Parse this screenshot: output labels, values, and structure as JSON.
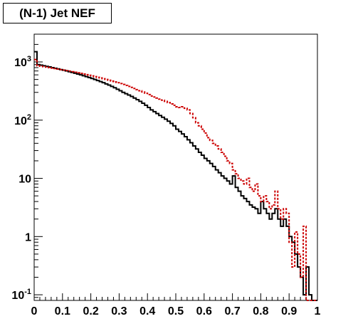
{
  "chart_data": {
    "type": "histogram",
    "title": "(N-1) Jet NEF",
    "xlabel": "",
    "ylabel": "",
    "xlim": [
      0,
      1
    ],
    "ylim": [
      0.08,
      3000
    ],
    "yscale": "log",
    "x_ticks": [
      "0",
      "0.1",
      "0.2",
      "0.3",
      "0.4",
      "0.5",
      "0.6",
      "0.7",
      "0.8",
      "0.9",
      "1"
    ],
    "y_ticks": [
      {
        "value": 0.1,
        "base": "10",
        "exp": "-1"
      },
      {
        "value": 1,
        "label": "1"
      },
      {
        "value": 10,
        "label": "10"
      },
      {
        "value": 100,
        "base": "10",
        "exp": "2"
      },
      {
        "value": 1000,
        "base": "10",
        "exp": "3"
      }
    ],
    "grid": false,
    "legend": "none",
    "bin_width": 0.01,
    "series": [
      {
        "style": "solid",
        "color": "#000000",
        "values": [
          1500,
          900,
          880,
          860,
          840,
          820,
          800,
          780,
          760,
          740,
          720,
          700,
          680,
          660,
          640,
          620,
          600,
          580,
          560,
          540,
          520,
          500,
          480,
          460,
          440,
          420,
          400,
          380,
          360,
          340,
          320,
          300,
          285,
          270,
          255,
          240,
          225,
          210,
          195,
          180,
          165,
          150,
          140,
          130,
          120,
          112,
          104,
          96,
          88,
          80,
          70,
          64,
          58,
          52,
          46,
          41,
          36,
          32,
          28,
          25,
          22,
          20,
          18,
          16,
          14,
          12.5,
          11,
          10,
          9,
          8,
          11,
          7,
          6,
          5,
          4.5,
          4,
          3.5,
          3.2,
          3,
          2.5,
          4,
          3,
          2.5,
          2,
          2.5,
          3,
          2,
          1.5,
          2,
          1.5,
          1,
          0.8,
          0.5,
          0.3,
          0.2,
          0.1,
          0.3,
          0.1,
          0.08,
          0.08
        ]
      },
      {
        "style": "dashed",
        "color": "#cc0000",
        "values": [
          1100,
          860,
          845,
          830,
          815,
          800,
          785,
          770,
          755,
          740,
          725,
          710,
          695,
          680,
          665,
          650,
          635,
          620,
          605,
          590,
          575,
          560,
          545,
          530,
          515,
          500,
          485,
          470,
          455,
          440,
          425,
          410,
          395,
          380,
          365,
          350,
          335,
          320,
          305,
          290,
          275,
          260,
          250,
          240,
          230,
          220,
          210,
          200,
          190,
          180,
          170,
          165,
          170,
          160,
          150,
          130,
          110,
          90,
          80,
          70,
          60,
          50,
          45,
          40,
          36,
          32,
          28,
          24,
          20,
          18,
          14,
          12,
          10,
          9,
          8,
          10,
          7,
          6,
          8,
          5,
          4,
          5,
          4,
          3,
          3.5,
          6,
          3,
          2,
          3,
          2.5,
          0.8,
          0.3,
          1.2,
          0.5,
          0.2,
          1.5,
          0.08,
          0.08,
          0.08,
          0.08
        ]
      }
    ]
  }
}
